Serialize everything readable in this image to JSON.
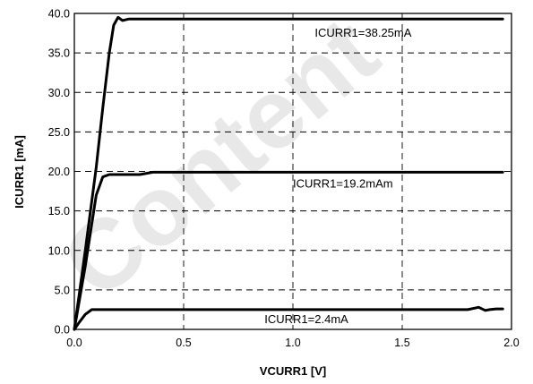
{
  "watermark": "Content",
  "chart_data": {
    "type": "line",
    "title": "",
    "xlabel": "VCURR1 [V]",
    "ylabel": "ICURR1 [mA]",
    "xlim": [
      0,
      2.0
    ],
    "ylim": [
      0,
      40
    ],
    "x_ticks": [
      "0.0",
      "0.5",
      "1.0",
      "1.5",
      "2.0"
    ],
    "y_ticks": [
      "0.0",
      "5.0",
      "10.0",
      "15.0",
      "20.0",
      "25.0",
      "30.0",
      "35.0",
      "40.0"
    ],
    "grid": true,
    "series": [
      {
        "name": "ICURR1=38.25mA",
        "label": "ICURR1=38.25mA",
        "x": [
          0.0,
          0.05,
          0.1,
          0.13,
          0.16,
          0.18,
          0.2,
          0.22,
          0.25,
          0.3,
          0.5,
          1.0,
          1.5,
          1.96
        ],
        "y": [
          0.0,
          10.0,
          20.5,
          28.0,
          35.0,
          38.5,
          39.5,
          39.1,
          39.3,
          39.3,
          39.3,
          39.3,
          39.3,
          39.3
        ]
      },
      {
        "name": "ICURR1=19.2mAm",
        "label": "ICURR1=19.2mAm",
        "x": [
          0.0,
          0.05,
          0.1,
          0.13,
          0.16,
          0.3,
          0.36,
          0.4,
          0.5,
          1.0,
          1.5,
          1.96
        ],
        "y": [
          0.0,
          8.0,
          17.0,
          19.3,
          19.6,
          19.6,
          19.9,
          19.9,
          19.9,
          19.9,
          19.9,
          19.9
        ]
      },
      {
        "name": "ICURR1=2.4mA",
        "label": "ICURR1=2.4mA",
        "x": [
          0.0,
          0.02,
          0.05,
          0.08,
          0.5,
          1.0,
          1.5,
          1.8,
          1.85,
          1.88,
          1.9,
          1.93,
          1.96
        ],
        "y": [
          0.0,
          0.8,
          1.9,
          2.5,
          2.5,
          2.5,
          2.5,
          2.5,
          2.8,
          2.4,
          2.5,
          2.6,
          2.6
        ]
      }
    ]
  }
}
